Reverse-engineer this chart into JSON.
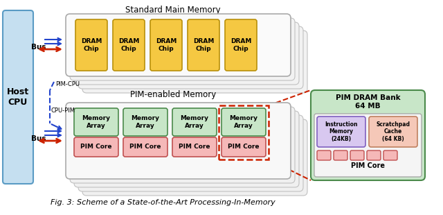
{
  "title_top": "Standard Main Memory",
  "title_middle": "PIM-enabled Memory",
  "fig_caption": "Fig. 3: Scheme of a State-of-the-Art Processing-In-Memory",
  "host_cpu_label": "Host\nCPU",
  "bus_label": "Bus",
  "pim_cpu_label": "PIM-CPU",
  "cpu_pim_label": "CPU-PIM",
  "dram_chip_label": "DRAM\nChip",
  "memory_array_label": "Memory\nArray",
  "pim_core_label": "PIM Core",
  "pim_dram_bank_label": "PIM DRAM Bank\n64 MB",
  "instruction_memory_label": "Instruction\nMemory\n(24KB)",
  "scratchpad_cache_label": "Scratchpad\nCache\n(64 KB)",
  "pim_core_detail_label": "PIM Core",
  "colors": {
    "host_cpu_bg": "#c5dff0",
    "host_cpu_border": "#5a9bc4",
    "dram_chip_bg": "#f5c842",
    "dram_chip_border": "#b8900a",
    "memory_array_bg": "#c8e6c8",
    "memory_array_border": "#4a8a4a",
    "pim_core_bg": "#f5b8b8",
    "pim_core_border": "#c05050",
    "pim_dram_bank_bg": "#c8e6c8",
    "pim_dram_bank_border": "#4a8a4a",
    "instruction_memory_bg": "#d8c8f0",
    "instruction_memory_border": "#8060c0",
    "scratchpad_cache_bg": "#f5c8b8",
    "scratchpad_cache_border": "#c08060",
    "pim_core_detail_bg": "#f0f0f0",
    "pim_core_detail_border": "#888888",
    "stack_bg": "#f5f5f5",
    "stack_border": "#bbbbbb",
    "red_arrow": "#cc2200",
    "blue_arrow": "#2244cc",
    "dashed_red": "#cc2200",
    "background": "#ffffff"
  }
}
